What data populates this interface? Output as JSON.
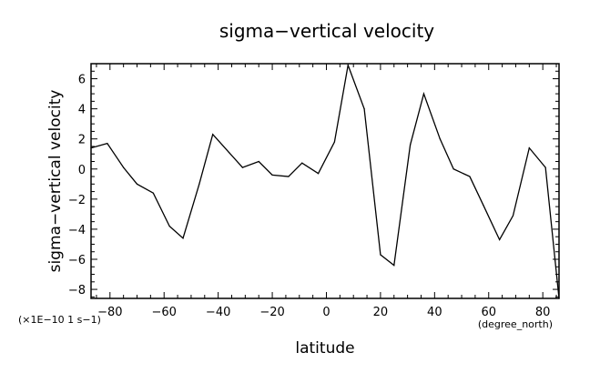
{
  "chart_data": {
    "type": "line",
    "title": "sigma−vertical velocity",
    "xlabel": "latitude",
    "ylabel": "sigma−vertical velocity",
    "y_units": "(×1E−10 1 s−1)",
    "x_units": "(degree_north)",
    "xlim": [
      -87,
      86
    ],
    "ylim": [
      -8.6,
      7
    ],
    "grid": false,
    "x_ticks": [
      -80,
      -60,
      -40,
      -20,
      0,
      20,
      40,
      60,
      80
    ],
    "x_tick_labels": [
      "−80",
      "−60",
      "−40",
      "−20",
      "0",
      "20",
      "40",
      "60",
      "80"
    ],
    "y_ticks": [
      6,
      4,
      2,
      0,
      -2,
      -4,
      -6,
      -8
    ],
    "y_tick_labels": [
      "6",
      "4",
      "2",
      "0",
      "−2",
      "−4",
      "−6",
      "−8"
    ],
    "series": [
      {
        "x": [
          -87,
          -81,
          -75,
          -70,
          -64,
          -58,
          -53,
          -47,
          -42,
          -36,
          -31,
          -25,
          -20,
          -14,
          -9,
          -3,
          3,
          8,
          14,
          20,
          25,
          31,
          36,
          42,
          47,
          53,
          58,
          64,
          69,
          75,
          81,
          86
        ],
        "y": [
          1.4,
          1.7,
          0.1,
          -1.0,
          -1.6,
          -3.8,
          -4.6,
          -1.0,
          2.3,
          1.1,
          0.1,
          0.5,
          -0.4,
          -0.5,
          0.4,
          -0.3,
          1.8,
          6.9,
          4.0,
          -5.7,
          -6.4,
          1.6,
          5.0,
          2.0,
          0.0,
          -0.5,
          -2.4,
          -4.7,
          -3.1,
          1.4,
          0.1,
          -8.6
        ]
      }
    ]
  }
}
